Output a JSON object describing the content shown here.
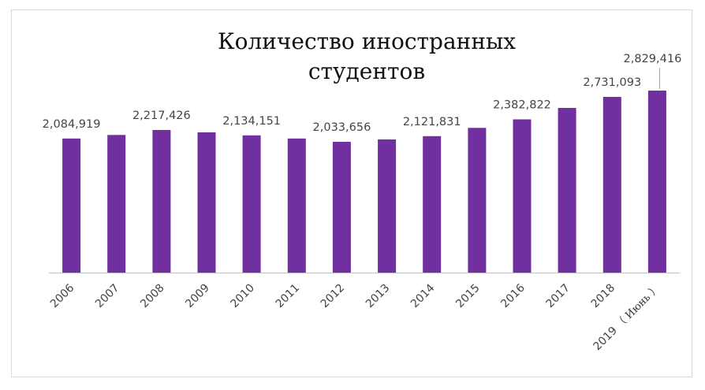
{
  "chart_data": {
    "type": "bar",
    "title": "Количество иностранных студентов",
    "xlabel": "",
    "ylabel": "",
    "categories": [
      "2006",
      "2007",
      "2008",
      "2009",
      "2010",
      "2011",
      "2012",
      "2013",
      "2014",
      "2015",
      "2016",
      "2017",
      "2018",
      "2019"
    ],
    "category_notes": [
      "",
      "",
      "",
      "",
      "",
      "",
      "",
      "",
      "",
      "",
      "",
      "",
      "",
      "（ Июнь ）"
    ],
    "values": [
      2084919,
      2140000,
      2217426,
      2180000,
      2134151,
      2085000,
      2033656,
      2070000,
      2121831,
      2250000,
      2382822,
      2560000,
      2731093,
      2829416
    ],
    "data_labels": [
      "2,084,919",
      "",
      "2,217,426",
      "",
      "2,134,151",
      "",
      "2,033,656",
      "",
      "2,121,831",
      "",
      "2,382,822",
      "",
      "2,731,093",
      "2,829,416"
    ],
    "ylim": [
      0,
      3000000
    ],
    "grid": false,
    "legend": "none",
    "bar_color": "#7030a0",
    "axis_color": "#bfbfbf",
    "leader_color": "#a6a6a6"
  }
}
